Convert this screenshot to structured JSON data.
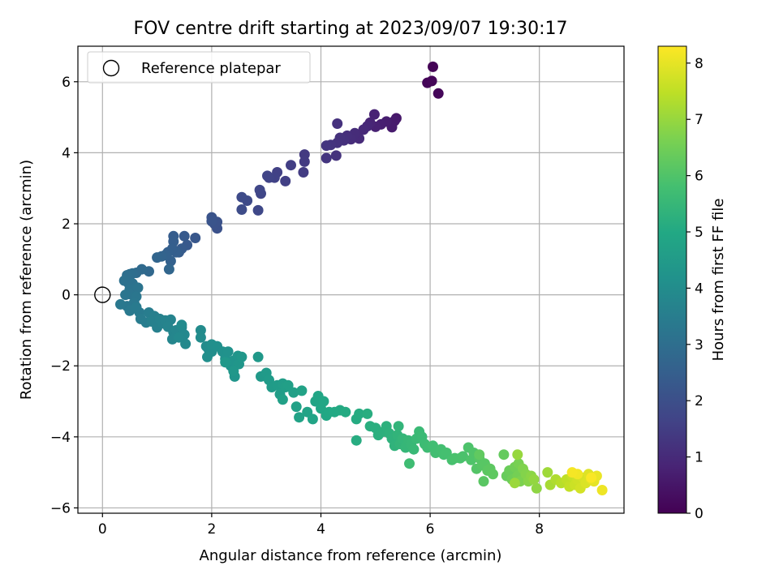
{
  "chart_data": {
    "type": "scatter",
    "title": "FOV centre drift starting at 2023/09/07 19:30:17",
    "xlabel": "Angular distance from reference (arcmin)",
    "ylabel": "Rotation from reference (arcmin)",
    "xlim": [
      -0.45,
      9.55
    ],
    "ylim": [
      -6.15,
      7.0
    ],
    "xticks": [
      0,
      2,
      4,
      6,
      8
    ],
    "yticks": [
      -6,
      -4,
      -2,
      0,
      2,
      4,
      6
    ],
    "x_tick_labels": [
      "0",
      "2",
      "4",
      "6",
      "8"
    ],
    "y_tick_labels": [
      "−6",
      "−4",
      "−2",
      "0",
      "2",
      "4",
      "6"
    ],
    "grid": true,
    "legend": {
      "position": "top-left",
      "entries": [
        "Reference platepar"
      ]
    },
    "reference_point": {
      "x": 0,
      "y": 0,
      "label": "Reference platepar"
    },
    "colorbar": {
      "label": "Hours from first FF file",
      "colormap": "viridis",
      "range": [
        0,
        8.3
      ],
      "ticks": [
        0,
        1,
        2,
        3,
        4,
        5,
        6,
        7,
        8
      ],
      "tick_labels": [
        "0",
        "1",
        "2",
        "3",
        "4",
        "5",
        "6",
        "7",
        "8"
      ]
    },
    "points": [
      [
        6.05,
        6.42,
        0.05
      ],
      [
        5.95,
        5.97,
        0.1
      ],
      [
        6.03,
        6.02,
        0.12
      ],
      [
        6.15,
        5.67,
        0.15
      ],
      [
        5.38,
        4.97,
        0.55
      ],
      [
        5.35,
        4.9,
        0.6
      ],
      [
        5.3,
        4.72,
        0.62
      ],
      [
        5.2,
        4.88,
        0.68
      ],
      [
        5.1,
        4.8,
        0.72
      ],
      [
        5.0,
        4.73,
        0.78
      ],
      [
        4.98,
        5.08,
        0.8
      ],
      [
        4.9,
        4.85,
        0.85
      ],
      [
        4.85,
        4.75,
        0.9
      ],
      [
        4.78,
        4.65,
        0.95
      ],
      [
        4.7,
        4.4,
        1.0
      ],
      [
        4.62,
        4.55,
        1.03
      ],
      [
        4.55,
        4.38,
        1.06
      ],
      [
        4.48,
        4.48,
        1.1
      ],
      [
        4.42,
        4.35,
        1.13
      ],
      [
        4.35,
        4.42,
        1.16
      ],
      [
        4.3,
        4.82,
        1.18
      ],
      [
        4.3,
        4.28,
        1.2
      ],
      [
        4.28,
        3.92,
        1.22
      ],
      [
        4.18,
        4.22,
        1.24
      ],
      [
        4.1,
        3.85,
        1.27
      ],
      [
        4.1,
        4.2,
        1.3
      ],
      [
        3.7,
        3.95,
        1.4
      ],
      [
        3.7,
        3.75,
        1.43
      ],
      [
        3.68,
        3.45,
        1.46
      ],
      [
        3.45,
        3.65,
        1.5
      ],
      [
        3.35,
        3.2,
        1.55
      ],
      [
        3.2,
        3.45,
        1.58
      ],
      [
        3.15,
        3.3,
        1.62
      ],
      [
        3.05,
        3.3,
        1.66
      ],
      [
        3.02,
        3.35,
        1.68
      ],
      [
        2.9,
        2.85,
        1.72
      ],
      [
        2.88,
        2.95,
        1.75
      ],
      [
        2.85,
        2.38,
        1.78
      ],
      [
        2.65,
        2.65,
        1.85
      ],
      [
        2.55,
        2.75,
        1.88
      ],
      [
        2.55,
        2.4,
        1.9
      ],
      [
        2.1,
        1.87,
        2.05
      ],
      [
        2.1,
        2.05,
        2.08
      ],
      [
        2.05,
        2.0,
        2.1
      ],
      [
        2.0,
        2.18,
        2.12
      ],
      [
        2.0,
        2.07,
        2.15
      ],
      [
        1.7,
        1.6,
        2.25
      ],
      [
        1.55,
        1.4,
        2.3
      ],
      [
        1.5,
        1.65,
        2.33
      ],
      [
        1.45,
        1.3,
        2.36
      ],
      [
        1.4,
        1.2,
        2.4
      ],
      [
        1.3,
        1.65,
        2.43
      ],
      [
        1.3,
        1.5,
        2.45
      ],
      [
        1.35,
        1.2,
        2.48
      ],
      [
        1.28,
        1.3,
        2.5
      ],
      [
        1.2,
        1.2,
        2.53
      ],
      [
        1.25,
        0.95,
        2.56
      ],
      [
        1.15,
        1.12,
        2.6
      ],
      [
        1.08,
        1.08,
        2.65
      ],
      [
        1.0,
        1.05,
        2.68
      ],
      [
        1.22,
        0.72,
        2.72
      ],
      [
        0.85,
        0.66,
        2.8
      ],
      [
        0.72,
        0.72,
        2.85
      ],
      [
        0.62,
        0.62,
        2.9
      ],
      [
        0.55,
        0.6,
        2.95
      ],
      [
        0.5,
        0.58,
        3.0
      ],
      [
        0.45,
        0.55,
        3.02
      ],
      [
        0.48,
        0.32,
        3.05
      ],
      [
        0.4,
        0.4,
        3.08
      ],
      [
        0.55,
        0.32,
        3.1
      ],
      [
        0.6,
        0.2,
        3.12
      ],
      [
        0.5,
        0.15,
        3.15
      ],
      [
        0.65,
        0.2,
        3.18
      ],
      [
        0.5,
        0.02,
        3.2
      ],
      [
        0.42,
        0.0,
        3.22
      ],
      [
        0.62,
        -0.05,
        3.25
      ],
      [
        0.58,
        -0.22,
        3.28
      ],
      [
        0.45,
        -0.32,
        3.3
      ],
      [
        0.33,
        -0.27,
        3.32
      ],
      [
        0.5,
        -0.45,
        3.35
      ],
      [
        0.68,
        -0.5,
        3.38
      ],
      [
        0.62,
        -0.35,
        3.4
      ],
      [
        0.7,
        -0.68,
        3.45
      ],
      [
        0.85,
        -0.5,
        3.48
      ],
      [
        0.8,
        -0.78,
        3.5
      ],
      [
        0.95,
        -0.6,
        3.55
      ],
      [
        0.9,
        -0.75,
        3.58
      ],
      [
        1.0,
        -0.92,
        3.6
      ],
      [
        1.05,
        -0.68,
        3.62
      ],
      [
        1.1,
        -0.8,
        3.65
      ],
      [
        1.15,
        -0.72,
        3.68
      ],
      [
        1.25,
        -0.7,
        3.7
      ],
      [
        1.2,
        -0.9,
        3.72
      ],
      [
        1.3,
        -1.05,
        3.75
      ],
      [
        1.28,
        -1.25,
        3.78
      ],
      [
        1.35,
        -1.0,
        3.8
      ],
      [
        1.45,
        -0.92,
        3.82
      ],
      [
        1.5,
        -1.12,
        3.85
      ],
      [
        1.52,
        -1.38,
        3.88
      ],
      [
        1.4,
        -1.2,
        3.9
      ],
      [
        1.45,
        -0.85,
        3.92
      ],
      [
        1.8,
        -1.0,
        3.95
      ],
      [
        1.8,
        -1.2,
        3.98
      ],
      [
        1.9,
        -1.45,
        4.0
      ],
      [
        1.95,
        -1.55,
        4.02
      ],
      [
        2.0,
        -1.6,
        4.05
      ],
      [
        1.92,
        -1.75,
        4.08
      ],
      [
        2.0,
        -1.4,
        4.1
      ],
      [
        2.1,
        -1.45,
        4.12
      ],
      [
        2.2,
        -1.6,
        4.15
      ],
      [
        2.25,
        -1.8,
        4.18
      ],
      [
        2.3,
        -1.6,
        4.2
      ],
      [
        2.35,
        -2.0,
        4.22
      ],
      [
        2.4,
        -1.85,
        4.25
      ],
      [
        2.42,
        -2.3,
        4.28
      ],
      [
        2.48,
        -1.72,
        4.3
      ],
      [
        2.5,
        -1.95,
        4.32
      ],
      [
        2.55,
        -1.75,
        4.35
      ],
      [
        2.4,
        -2.15,
        4.38
      ],
      [
        2.25,
        -1.9,
        4.4
      ],
      [
        2.85,
        -1.75,
        4.42
      ],
      [
        2.9,
        -2.3,
        4.45
      ],
      [
        3.0,
        -2.2,
        4.48
      ],
      [
        3.05,
        -2.4,
        4.5
      ],
      [
        3.1,
        -2.6,
        4.52
      ],
      [
        3.2,
        -2.55,
        4.55
      ],
      [
        3.3,
        -2.5,
        4.58
      ],
      [
        3.25,
        -2.8,
        4.6
      ],
      [
        3.35,
        -2.6,
        4.62
      ],
      [
        3.4,
        -2.55,
        4.65
      ],
      [
        3.5,
        -2.75,
        4.68
      ],
      [
        3.3,
        -2.95,
        4.7
      ],
      [
        3.55,
        -3.15,
        4.72
      ],
      [
        3.6,
        -3.45,
        4.75
      ],
      [
        3.65,
        -2.7,
        4.78
      ],
      [
        3.75,
        -3.3,
        4.8
      ],
      [
        3.85,
        -3.5,
        4.82
      ],
      [
        3.9,
        -3.0,
        4.85
      ],
      [
        3.95,
        -2.85,
        4.88
      ],
      [
        4.0,
        -3.2,
        4.9
      ],
      [
        4.05,
        -3.0,
        4.92
      ],
      [
        4.1,
        -3.4,
        4.95
      ],
      [
        4.15,
        -3.3,
        4.98
      ],
      [
        4.25,
        -3.3,
        5.0
      ],
      [
        4.35,
        -3.25,
        5.02
      ],
      [
        4.45,
        -3.3,
        5.05
      ],
      [
        4.65,
        -3.5,
        5.08
      ],
      [
        4.7,
        -3.35,
        5.1
      ],
      [
        4.65,
        -4.1,
        5.12
      ],
      [
        4.85,
        -3.35,
        5.15
      ],
      [
        4.9,
        -3.7,
        5.18
      ],
      [
        5.0,
        -3.75,
        5.2
      ],
      [
        5.05,
        -3.95,
        5.22
      ],
      [
        5.15,
        -3.85,
        5.25
      ],
      [
        5.2,
        -3.7,
        5.28
      ],
      [
        5.25,
        -3.9,
        5.3
      ],
      [
        5.3,
        -4.05,
        5.32
      ],
      [
        5.35,
        -4.25,
        5.35
      ],
      [
        5.4,
        -3.95,
        5.38
      ],
      [
        5.42,
        -3.7,
        5.4
      ],
      [
        5.45,
        -4.2,
        5.42
      ],
      [
        5.5,
        -4.05,
        5.45
      ],
      [
        5.55,
        -4.3,
        5.48
      ],
      [
        5.6,
        -4.1,
        5.5
      ],
      [
        5.65,
        -4.2,
        5.52
      ],
      [
        5.7,
        -4.35,
        5.55
      ],
      [
        5.75,
        -4.05,
        5.58
      ],
      [
        5.8,
        -3.85,
        5.6
      ],
      [
        5.85,
        -4.0,
        5.62
      ],
      [
        5.9,
        -4.2,
        5.65
      ],
      [
        5.95,
        -4.3,
        5.68
      ],
      [
        5.62,
        -4.75,
        5.7
      ],
      [
        6.05,
        -4.25,
        5.72
      ],
      [
        6.1,
        -4.45,
        5.75
      ],
      [
        6.2,
        -4.35,
        5.78
      ],
      [
        6.25,
        -4.5,
        5.8
      ],
      [
        6.3,
        -4.45,
        5.82
      ],
      [
        6.4,
        -4.65,
        5.85
      ],
      [
        6.45,
        -4.6,
        5.88
      ],
      [
        6.55,
        -4.6,
        5.9
      ],
      [
        6.6,
        -4.55,
        5.92
      ],
      [
        6.7,
        -4.3,
        5.95
      ],
      [
        6.75,
        -4.65,
        5.98
      ],
      [
        6.8,
        -4.45,
        6.0
      ],
      [
        6.85,
        -4.9,
        6.05
      ],
      [
        6.9,
        -4.6,
        6.08
      ],
      [
        6.95,
        -4.8,
        6.1
      ],
      [
        7.0,
        -4.75,
        6.12
      ],
      [
        6.98,
        -5.25,
        6.15
      ],
      [
        7.05,
        -4.95,
        6.18
      ],
      [
        7.1,
        -4.9,
        6.2
      ],
      [
        7.15,
        -5.05,
        6.22
      ],
      [
        6.9,
        -4.5,
        6.25
      ],
      [
        7.35,
        -4.5,
        6.3
      ],
      [
        7.4,
        -5.1,
        6.35
      ],
      [
        7.45,
        -4.95,
        6.4
      ],
      [
        7.5,
        -5.2,
        6.45
      ],
      [
        7.55,
        -4.85,
        6.5
      ],
      [
        7.6,
        -5.1,
        6.55
      ],
      [
        7.62,
        -4.75,
        6.6
      ],
      [
        7.65,
        -5.25,
        6.65
      ],
      [
        7.7,
        -4.9,
        6.7
      ],
      [
        7.75,
        -5.05,
        6.75
      ],
      [
        7.8,
        -5.25,
        6.8
      ],
      [
        7.85,
        -5.1,
        6.85
      ],
      [
        7.95,
        -5.45,
        6.9
      ],
      [
        7.9,
        -5.2,
        6.95
      ],
      [
        7.6,
        -4.5,
        7.0
      ],
      [
        7.55,
        -5.3,
        7.05
      ],
      [
        8.15,
        -5.0,
        7.1
      ],
      [
        8.2,
        -5.35,
        7.2
      ],
      [
        8.3,
        -5.2,
        7.3
      ],
      [
        8.4,
        -5.3,
        7.4
      ],
      [
        8.5,
        -5.2,
        7.5
      ],
      [
        8.55,
        -5.4,
        7.55
      ],
      [
        8.6,
        -5.1,
        7.6
      ],
      [
        8.65,
        -5.35,
        7.65
      ],
      [
        8.7,
        -5.2,
        7.7
      ],
      [
        8.75,
        -5.45,
        7.75
      ],
      [
        8.8,
        -5.15,
        7.8
      ],
      [
        8.85,
        -5.3,
        7.85
      ],
      [
        8.9,
        -5.05,
        7.9
      ],
      [
        8.95,
        -5.2,
        7.95
      ],
      [
        9.0,
        -5.25,
        8.0
      ],
      [
        9.05,
        -5.1,
        8.05
      ],
      [
        9.15,
        -5.5,
        8.1
      ],
      [
        8.7,
        -5.05,
        8.15
      ],
      [
        8.6,
        -5.0,
        8.2
      ],
      [
        8.95,
        -5.15,
        8.25
      ]
    ]
  }
}
